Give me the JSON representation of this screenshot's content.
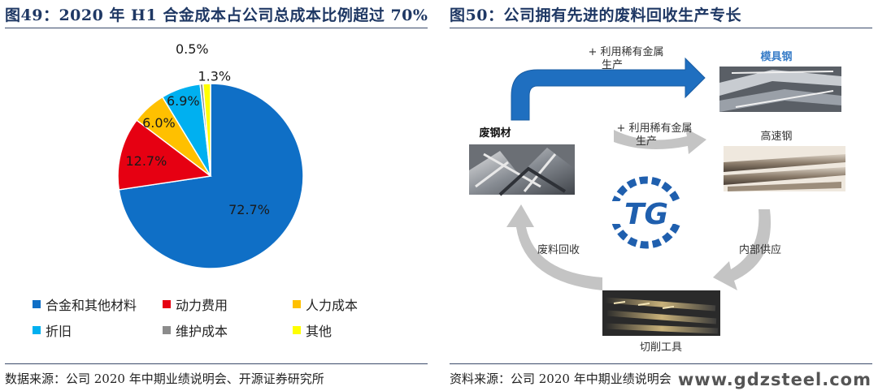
{
  "left_panel": {
    "title": "图49：2020 年 H1 合金成本占公司总成本比例超过 70%",
    "source": "数据来源：公司 2020 年中期业绩说明会、开源证券研究所"
  },
  "right_panel": {
    "title": "图50：公司拥有先进的废料回收生产专长",
    "source": "资料来源：公司 2020 年中期业绩说明会",
    "nodes": {
      "scrap": "废钢材",
      "mold_steel": "模具钢",
      "hss": "高速钢",
      "cutting_tools": "切削工具",
      "logo": "TG"
    },
    "arrows": {
      "top_line1": "+ 利用稀有金属",
      "top_line2": "生产",
      "mid_line1": "+ 利用稀有金属",
      "mid_line2": "生产",
      "right": "内部供应",
      "left": "废料回收"
    }
  },
  "watermark": "www.gdzsteel.com",
  "colors": {
    "title": "#1f3864",
    "arrow_blue": "#1f6fc0",
    "arrow_gray": "#c4c4c4"
  },
  "chart_data": {
    "type": "pie",
    "title": "",
    "categories": [
      "合金和其他材料",
      "动力费用",
      "人力成本",
      "折旧",
      "维护成本",
      "其他"
    ],
    "values": [
      72.7,
      12.7,
      6.0,
      6.9,
      0.5,
      1.3
    ],
    "value_labels": [
      "72.7%",
      "12.7%",
      "6.0%",
      "6.9%",
      "0.5%",
      "1.3%"
    ],
    "colors": [
      "#0f6fc6",
      "#e60012",
      "#ffc000",
      "#00b0f0",
      "#8c8c8c",
      "#ffff00"
    ],
    "legend_position": "bottom"
  }
}
